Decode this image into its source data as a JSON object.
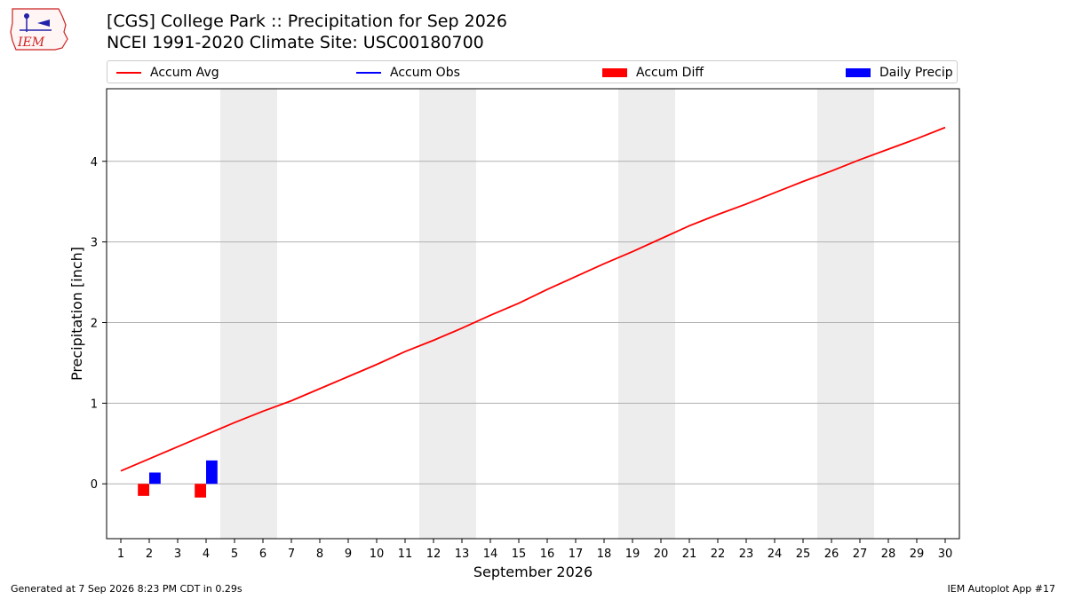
{
  "header": {
    "title_line1": "[CGS] College Park :: Precipitation for Sep 2026",
    "title_line2": "NCEI 1991-2020 Climate Site: USC00180700"
  },
  "logo": {
    "text": "IEM",
    "icon": "iem-logo-icon"
  },
  "legend": {
    "items": [
      {
        "label": "Accum Avg",
        "kind": "line",
        "color": "#ff0000"
      },
      {
        "label": "Accum Obs",
        "kind": "line",
        "color": "#0000ff"
      },
      {
        "label": "Accum Diff",
        "kind": "patch",
        "color": "#ff0000"
      },
      {
        "label": "Daily Precip",
        "kind": "patch",
        "color": "#0000ff"
      }
    ]
  },
  "chart_data": {
    "type": "line",
    "xlabel": "September 2026",
    "ylabel": "Precipitation [inch]",
    "xlim": [
      0.5,
      30.5
    ],
    "ylim": [
      -0.68,
      4.9
    ],
    "yticks": [
      0,
      1,
      2,
      3,
      4
    ],
    "x_ticks": [
      "1",
      "2",
      "3",
      "4",
      "5",
      "6",
      "7",
      "8",
      "9",
      "10",
      "11",
      "12",
      "13",
      "14",
      "15",
      "16",
      "17",
      "18",
      "19",
      "20",
      "21",
      "22",
      "23",
      "24",
      "25",
      "26",
      "27",
      "28",
      "29",
      "30"
    ],
    "weekend_spans": [
      [
        4.5,
        6.5
      ],
      [
        11.5,
        13.5
      ],
      [
        18.5,
        20.5
      ],
      [
        25.5,
        27.5
      ]
    ],
    "series": [
      {
        "name": "Accum Avg",
        "color": "#ff0000",
        "x": [
          1,
          2,
          3,
          4,
          5,
          6,
          7,
          8,
          9,
          10,
          11,
          12,
          13,
          14,
          15,
          16,
          17,
          18,
          19,
          20,
          21,
          22,
          23,
          24,
          25,
          26,
          27,
          28,
          29,
          30
        ],
        "values": [
          0.16,
          0.31,
          0.46,
          0.61,
          0.76,
          0.9,
          1.03,
          1.18,
          1.33,
          1.48,
          1.64,
          1.78,
          1.93,
          2.09,
          2.24,
          2.41,
          2.57,
          2.73,
          2.88,
          3.04,
          3.2,
          3.34,
          3.47,
          3.61,
          3.75,
          3.88,
          4.02,
          4.15,
          4.28,
          4.42
        ]
      }
    ],
    "bars": [
      {
        "name": "Accum Diff",
        "color": "#ff0000",
        "x": [
          2,
          4
        ],
        "values": [
          -0.15,
          -0.17
        ]
      },
      {
        "name": "Daily Precip",
        "color": "#0000ff",
        "x": [
          2,
          4
        ],
        "values": [
          0.14,
          0.29
        ]
      }
    ]
  },
  "footer": {
    "generated": "Generated at 7 Sep 2026 8:23 PM CDT in 0.29s",
    "app": "IEM Autoplot App #17"
  }
}
